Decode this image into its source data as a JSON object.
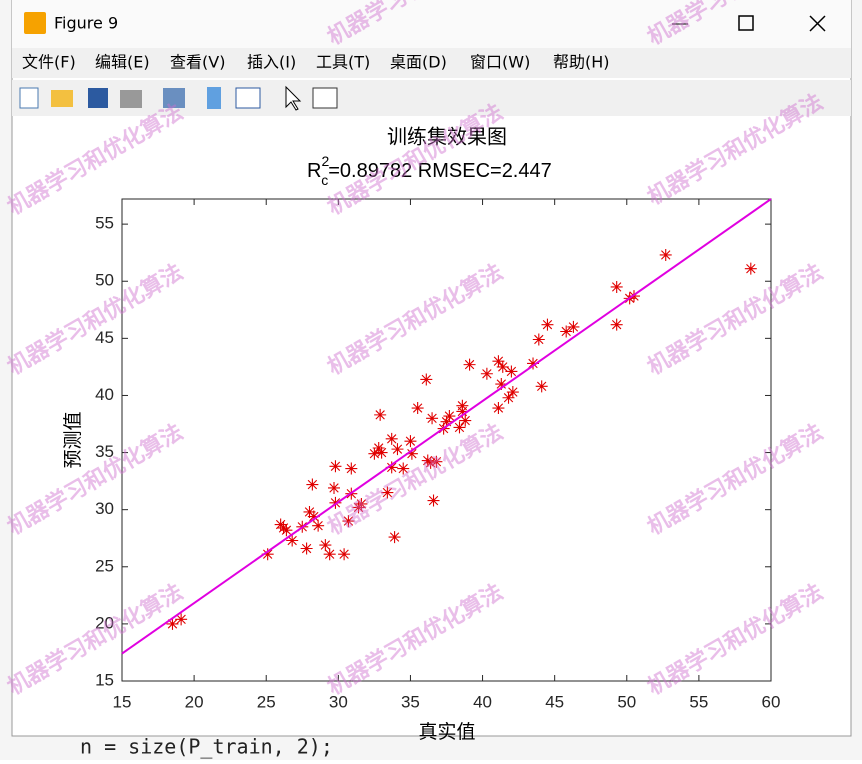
{
  "window": {
    "title": "Figure 9",
    "menus": [
      "文件(F)",
      "编辑(E)",
      "查看(V)",
      "插入(I)",
      "工具(T)",
      "桌面(D)",
      "窗口(W)",
      "帮助(H)"
    ],
    "background_code": "n = size(P_train, 2);",
    "watermark": "机器学习和优化算法"
  },
  "chart_data": {
    "type": "scatter",
    "title": "训练集效果图",
    "subtitle": {
      "base": "R",
      "sub": "c",
      "sup": "2",
      "rest": "=0.89782  RMSEC=2.447"
    },
    "xlabel": "真实值",
    "ylabel": "预测值",
    "xlim": [
      15,
      60
    ],
    "ylim": [
      15,
      57.2
    ],
    "xticks": [
      15,
      20,
      25,
      30,
      35,
      40,
      45,
      50,
      55,
      60
    ],
    "yticks": [
      15,
      20,
      25,
      30,
      35,
      40,
      45,
      50,
      55
    ],
    "grid": false,
    "series": [
      {
        "kind": "scatter",
        "marker": "*",
        "color": "#e00000",
        "x": [
          18.5,
          19.1,
          25.1,
          26.0,
          26.2,
          26.4,
          26.8,
          27.5,
          27.8,
          28.0,
          28.2,
          28.3,
          28.6,
          29.1,
          29.4,
          29.7,
          29.8,
          29.8,
          30.4,
          30.7,
          30.9,
          30.9,
          31.4,
          31.6,
          32.5,
          32.8,
          32.9,
          33.0,
          33.4,
          33.7,
          33.7,
          33.9,
          34.1,
          34.5,
          35.0,
          35.1,
          35.5,
          36.1,
          36.2,
          36.4,
          36.5,
          36.6,
          36.8,
          37.3,
          37.5,
          37.7,
          38.4,
          38.6,
          38.6,
          38.8,
          39.1,
          40.3,
          41.1,
          41.1,
          41.3,
          41.4,
          41.8,
          42.0,
          42.1,
          43.5,
          43.9,
          44.1,
          44.5,
          45.8,
          46.3,
          49.3,
          49.3,
          50.2,
          50.5,
          52.7,
          58.6
        ],
        "values": [
          20.0,
          20.4,
          26.1,
          28.7,
          28.4,
          28.2,
          27.3,
          28.5,
          26.6,
          29.8,
          32.2,
          29.4,
          28.6,
          26.9,
          26.1,
          31.9,
          33.8,
          30.6,
          26.1,
          29.0,
          31.4,
          33.6,
          30.2,
          30.5,
          34.9,
          35.4,
          38.3,
          35.0,
          31.5,
          33.7,
          36.2,
          27.6,
          35.3,
          33.6,
          36.0,
          34.9,
          38.9,
          41.4,
          34.3,
          34.1,
          38.0,
          30.8,
          34.2,
          37.1,
          37.7,
          38.2,
          37.2,
          39.1,
          38.6,
          37.8,
          42.7,
          41.9,
          38.9,
          43.0,
          41.0,
          42.5,
          39.8,
          42.1,
          40.3,
          42.8,
          44.9,
          40.8,
          46.2,
          45.6,
          46.0,
          49.5,
          46.2,
          48.5,
          48.7,
          52.3,
          51.1
        ]
      },
      {
        "kind": "line",
        "color": "#e000e0",
        "x": [
          15,
          60
        ],
        "values": [
          17.4,
          57.2
        ]
      }
    ]
  }
}
